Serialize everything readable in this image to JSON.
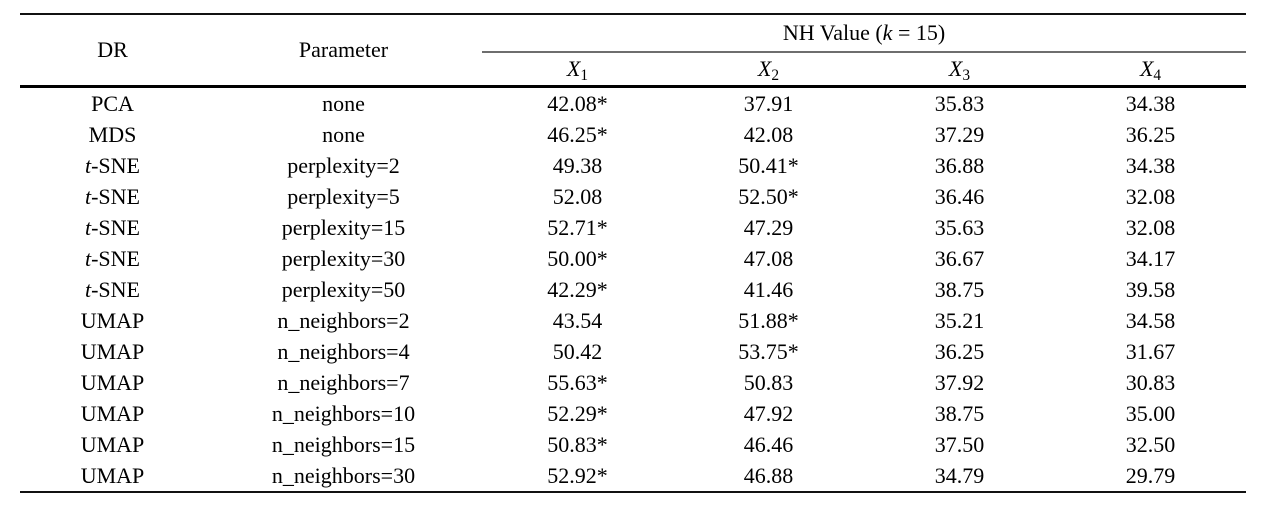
{
  "table": {
    "col_dr_label": "DR",
    "col_param_label": "Parameter",
    "group_header": {
      "pre": "NH Value (",
      "k_italic": "k",
      "post": " = 15)"
    },
    "value_columns": [
      {
        "base": "X",
        "sub": "1"
      },
      {
        "base": "X",
        "sub": "2"
      },
      {
        "base": "X",
        "sub": "3"
      },
      {
        "base": "X",
        "sub": "4"
      }
    ],
    "rows": [
      {
        "dr_italic": "",
        "dr_text": "PCA",
        "parameter": "none",
        "values": [
          "42.08*",
          "37.91",
          "35.83",
          "34.38"
        ]
      },
      {
        "dr_italic": "",
        "dr_text": "MDS",
        "parameter": "none",
        "values": [
          "46.25*",
          "42.08",
          "37.29",
          "36.25"
        ]
      },
      {
        "dr_italic": "t",
        "dr_text": "-SNE",
        "parameter": "perplexity=2",
        "values": [
          "49.38",
          "50.41*",
          "36.88",
          "34.38"
        ]
      },
      {
        "dr_italic": "t",
        "dr_text": "-SNE",
        "parameter": "perplexity=5",
        "values": [
          "52.08",
          "52.50*",
          "36.46",
          "32.08"
        ]
      },
      {
        "dr_italic": "t",
        "dr_text": "-SNE",
        "parameter": "perplexity=15",
        "values": [
          "52.71*",
          "47.29",
          "35.63",
          "32.08"
        ]
      },
      {
        "dr_italic": "t",
        "dr_text": "-SNE",
        "parameter": "perplexity=30",
        "values": [
          "50.00*",
          "47.08",
          "36.67",
          "34.17"
        ]
      },
      {
        "dr_italic": "t",
        "dr_text": "-SNE",
        "parameter": "perplexity=50",
        "values": [
          "42.29*",
          "41.46",
          "38.75",
          "39.58"
        ]
      },
      {
        "dr_italic": "",
        "dr_text": "UMAP",
        "parameter": "n_neighbors=2",
        "values": [
          "43.54",
          "51.88*",
          "35.21",
          "34.58"
        ]
      },
      {
        "dr_italic": "",
        "dr_text": "UMAP",
        "parameter": "n_neighbors=4",
        "values": [
          "50.42",
          "53.75*",
          "36.25",
          "31.67"
        ]
      },
      {
        "dr_italic": "",
        "dr_text": "UMAP",
        "parameter": "n_neighbors=7",
        "values": [
          "55.63*",
          "50.83",
          "37.92",
          "30.83"
        ]
      },
      {
        "dr_italic": "",
        "dr_text": "UMAP",
        "parameter": "n_neighbors=10",
        "values": [
          "52.29*",
          "47.92",
          "38.75",
          "35.00"
        ]
      },
      {
        "dr_italic": "",
        "dr_text": "UMAP",
        "parameter": "n_neighbors=15",
        "values": [
          "50.83*",
          "46.46",
          "37.50",
          "32.50"
        ]
      },
      {
        "dr_italic": "",
        "dr_text": "UMAP",
        "parameter": "n_neighbors=30",
        "values": [
          "52.92*",
          "46.88",
          "34.79",
          "29.79"
        ]
      }
    ]
  }
}
